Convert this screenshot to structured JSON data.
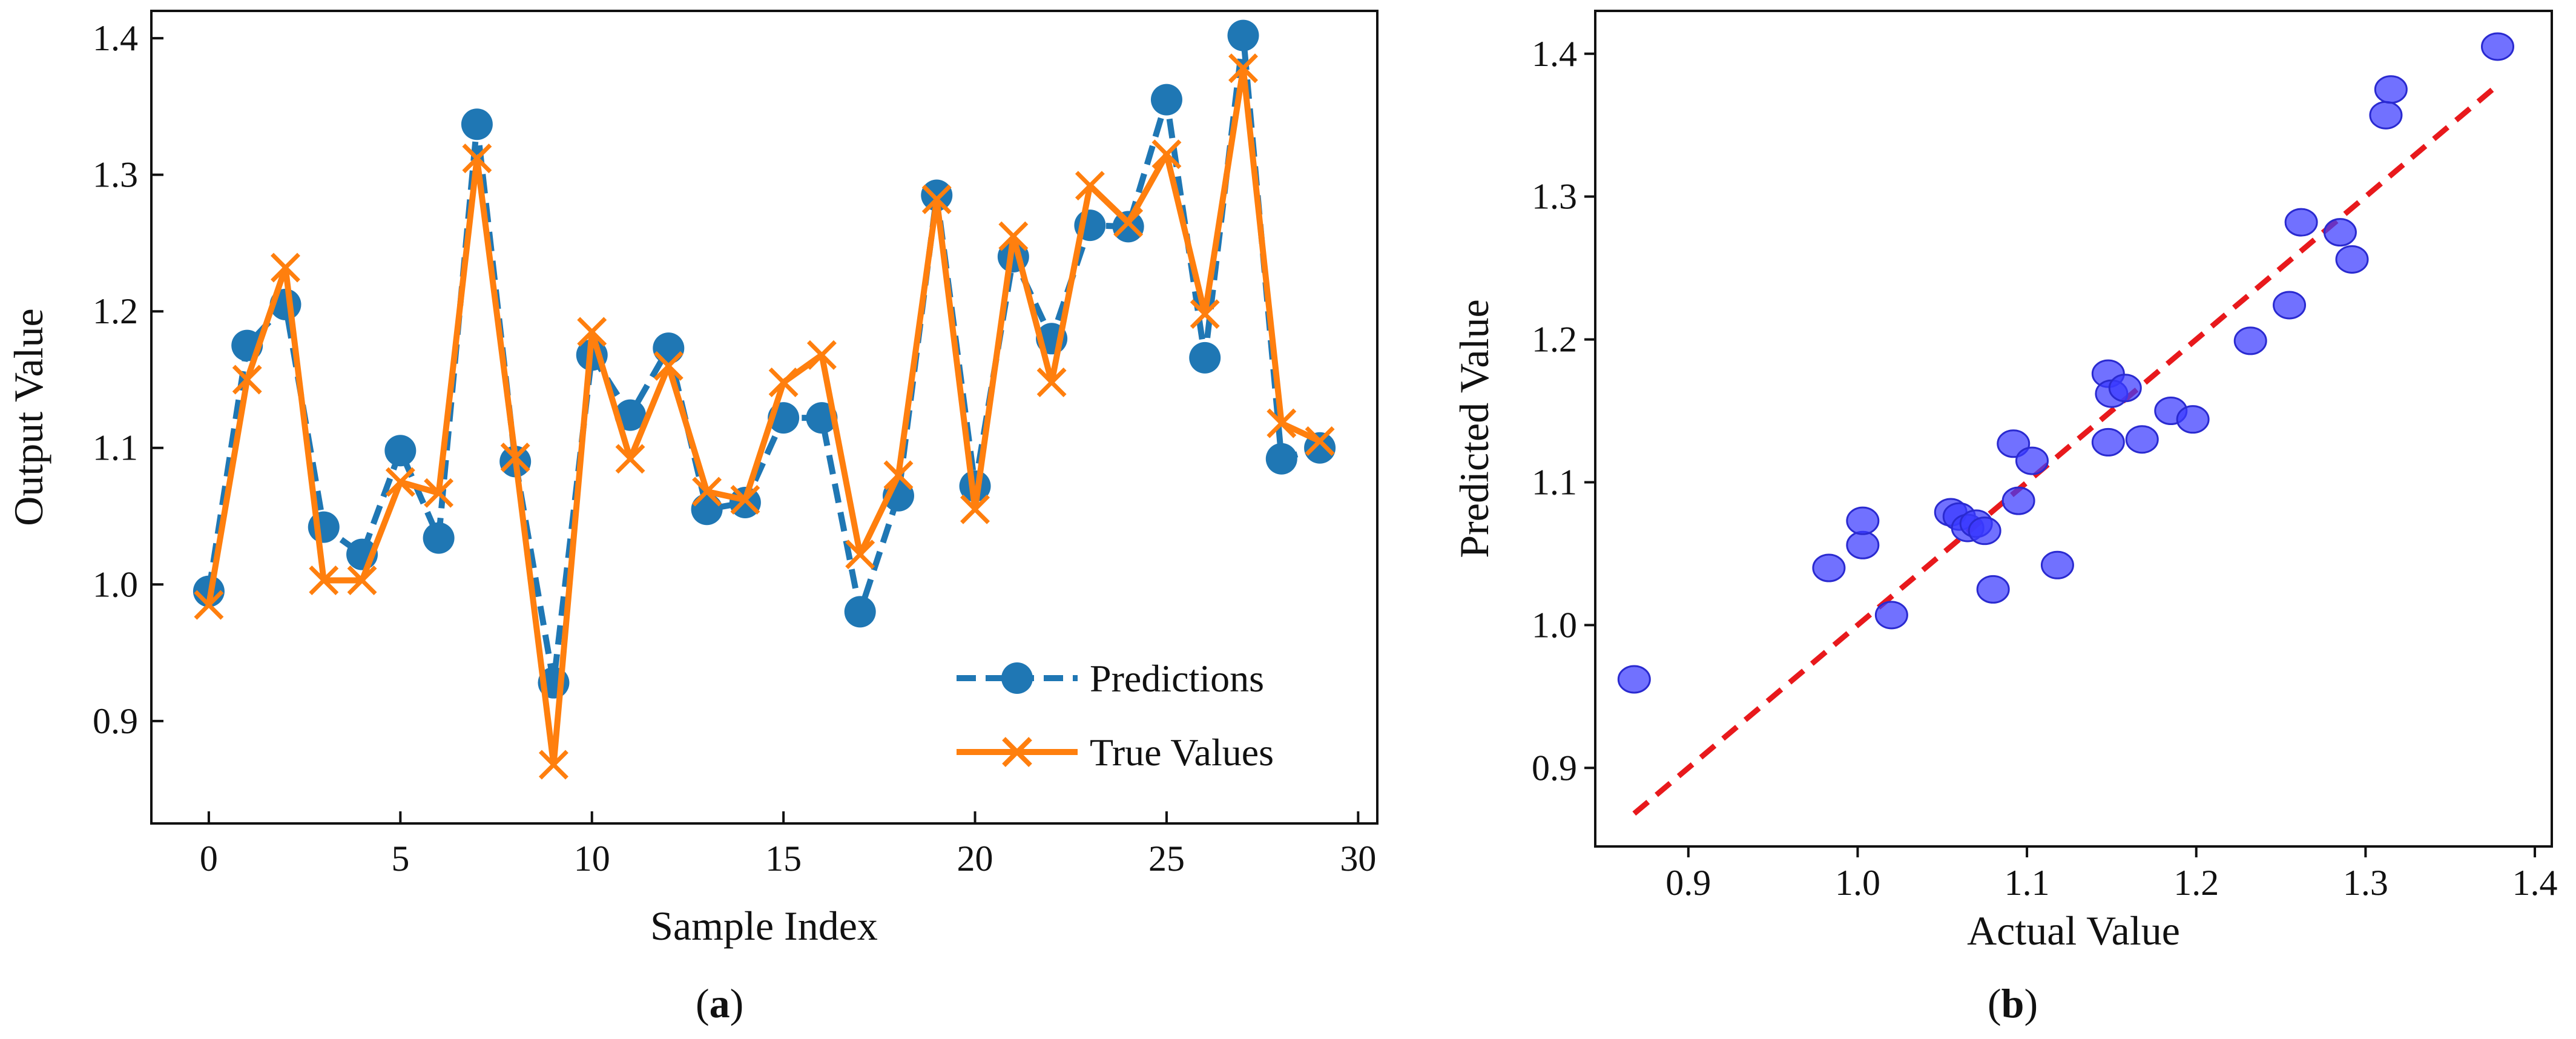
{
  "chart_data": [
    {
      "type": "line",
      "panel_label": "a",
      "title": "",
      "xlabel": "Sample Index",
      "ylabel": "Output Value",
      "xlim": [
        -1.5,
        30.5
      ],
      "ylim": [
        0.825,
        1.42
      ],
      "xticks": [
        0,
        5,
        10,
        15,
        20,
        25,
        30
      ],
      "xtick_labels": [
        "0",
        "5",
        "10",
        "15",
        "20",
        "25",
        "30"
      ],
      "yticks": [
        0.9,
        1.0,
        1.1,
        1.2,
        1.3,
        1.4
      ],
      "ytick_labels": [
        "0.9",
        "1.0",
        "1.1",
        "1.2",
        "1.3",
        "1.4"
      ],
      "grid": false,
      "legend_position": "bottom-right",
      "x": [
        0,
        1,
        2,
        3,
        4,
        5,
        6,
        7,
        8,
        9,
        10,
        11,
        12,
        13,
        14,
        15,
        16,
        17,
        18,
        19,
        20,
        21,
        22,
        23,
        24,
        25,
        26,
        27,
        28,
        29
      ],
      "series": [
        {
          "name": "Predictions",
          "style": "dashed-circle",
          "color": "#1f77b4",
          "values": [
            0.995,
            1.175,
            1.205,
            1.042,
            1.022,
            1.098,
            1.034,
            1.337,
            1.09,
            0.928,
            1.168,
            1.124,
            1.173,
            1.055,
            1.06,
            1.122,
            1.122,
            0.98,
            1.065,
            1.285,
            1.072,
            1.24,
            1.18,
            1.263,
            1.262,
            1.355,
            1.166,
            1.402,
            1.092,
            1.1
          ]
        },
        {
          "name": "True Values",
          "style": "solid-x",
          "color": "#ff7f0e",
          "values": [
            0.985,
            1.15,
            1.232,
            1.003,
            1.003,
            1.075,
            1.067,
            1.312,
            1.093,
            0.868,
            1.185,
            1.092,
            1.16,
            1.068,
            1.062,
            1.148,
            1.168,
            1.022,
            1.08,
            1.282,
            1.055,
            1.255,
            1.148,
            1.292,
            1.265,
            1.315,
            1.198,
            1.378,
            1.118,
            1.105
          ]
        }
      ]
    },
    {
      "type": "scatter",
      "panel_label": "b",
      "title": "",
      "xlabel": "Actual Value",
      "ylabel": "Predicted Value",
      "xlim": [
        0.845,
        1.41
      ],
      "ylim": [
        0.845,
        1.43
      ],
      "xticks": [
        0.9,
        1.0,
        1.1,
        1.2,
        1.3,
        1.4
      ],
      "xtick_labels": [
        "0.9",
        "1.0",
        "1.1",
        "1.2",
        "1.3",
        "1.4"
      ],
      "yticks": [
        0.9,
        1.0,
        1.1,
        1.2,
        1.3,
        1.4
      ],
      "ytick_labels": [
        "0.9",
        "1.0",
        "1.1",
        "1.2",
        "1.3",
        "1.4"
      ],
      "grid": false,
      "point_color": "#3a3aff",
      "reference_line": {
        "style": "dashed",
        "color": "#e8191c",
        "x": [
          0.868,
          1.378
        ],
        "y": [
          0.868,
          1.378
        ]
      },
      "points": [
        [
          0.868,
          0.962
        ],
        [
          0.983,
          1.04
        ],
        [
          1.003,
          1.056
        ],
        [
          1.003,
          1.073
        ],
        [
          1.02,
          1.007
        ],
        [
          1.055,
          1.079
        ],
        [
          1.06,
          1.076
        ],
        [
          1.065,
          1.068
        ],
        [
          1.07,
          1.071
        ],
        [
          1.075,
          1.066
        ],
        [
          1.08,
          1.025
        ],
        [
          1.092,
          1.127
        ],
        [
          1.095,
          1.087
        ],
        [
          1.103,
          1.115
        ],
        [
          1.118,
          1.042
        ],
        [
          1.148,
          1.176
        ],
        [
          1.148,
          1.128
        ],
        [
          1.15,
          1.162
        ],
        [
          1.158,
          1.166
        ],
        [
          1.168,
          1.13
        ],
        [
          1.185,
          1.15
        ],
        [
          1.198,
          1.144
        ],
        [
          1.232,
          1.199
        ],
        [
          1.255,
          1.224
        ],
        [
          1.262,
          1.282
        ],
        [
          1.285,
          1.275
        ],
        [
          1.292,
          1.256
        ],
        [
          1.312,
          1.357
        ],
        [
          1.315,
          1.375
        ],
        [
          1.378,
          1.405
        ]
      ]
    }
  ]
}
